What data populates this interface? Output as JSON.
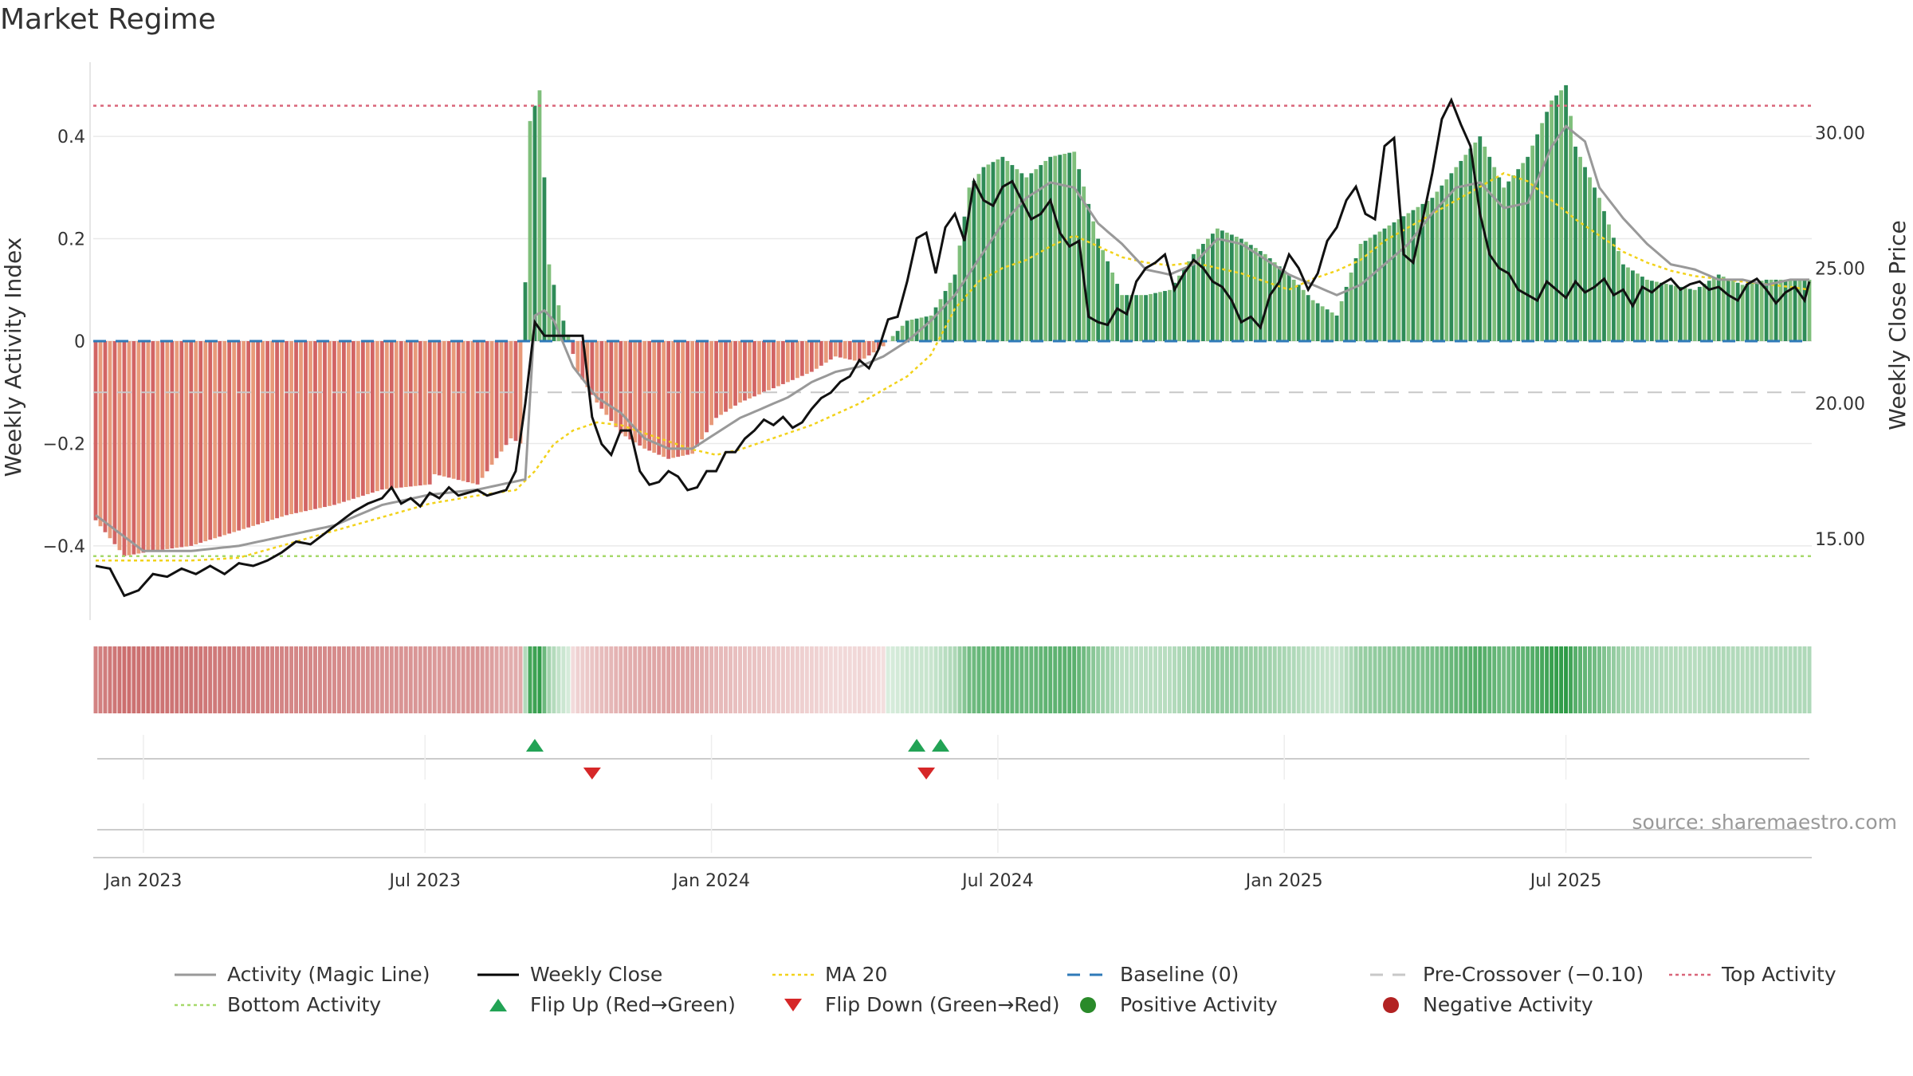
{
  "title": "Market Regime",
  "source_text": "source: sharemaestro.com",
  "legend": [
    {
      "label": "Activity (Magic Line)",
      "kind": "line",
      "color": "#999999"
    },
    {
      "label": "Weekly Close",
      "kind": "line",
      "color": "#000000"
    },
    {
      "label": "MA 20",
      "kind": "dotted",
      "color": "#f2d21b"
    },
    {
      "label": "Baseline (0)",
      "kind": "dashed",
      "color": "#2f7ab8"
    },
    {
      "label": "Pre-Crossover (−0.10)",
      "kind": "dashed",
      "color": "#c8c8c8"
    },
    {
      "label": "Top Activity",
      "kind": "dotted",
      "color": "#d9667a"
    },
    {
      "label": "Bottom Activity",
      "kind": "dotted",
      "color": "#a6d96a"
    },
    {
      "label": "Flip Up (Red→Green)",
      "kind": "tri-up",
      "color": "#22a355"
    },
    {
      "label": "Flip Down (Green→Red)",
      "kind": "tri-down",
      "color": "#d62728"
    },
    {
      "label": "Positive Activity",
      "kind": "dot",
      "color": "#2a8a2a"
    },
    {
      "label": "Negative Activity",
      "kind": "dot",
      "color": "#b22222"
    }
  ],
  "chart_data": {
    "type": "bar",
    "x_ticks": [
      "Jan 2023",
      "Jul 2023",
      "Jan 2024",
      "Jul 2024",
      "Jan 2025",
      "Jul 2025"
    ],
    "x_tick_weeks": [
      10,
      69,
      129,
      189,
      249,
      308
    ],
    "n_weeks": 360,
    "y_left": {
      "label": "Weekly Activity Index",
      "ticks": [
        "0.4",
        "0.2",
        "0",
        "−0.2",
        "−0.4"
      ],
      "tick_values": [
        0.4,
        0.2,
        0,
        -0.2,
        -0.4
      ],
      "range": [
        -0.545,
        0.545
      ]
    },
    "y_right": {
      "label": "Weekly Close Price",
      "ticks": [
        "30.00",
        "25.00",
        "20.00",
        "15.00"
      ],
      "tick_values": [
        30,
        25,
        20,
        15
      ],
      "range": [
        12.0,
        32.6
      ]
    },
    "reference_lines": {
      "top_activity": 0.46,
      "bottom_activity": -0.42,
      "pre_crossover": -0.1,
      "baseline": 0
    },
    "activity_keyframes": [
      [
        0,
        -0.35
      ],
      [
        6,
        -0.42
      ],
      [
        12,
        -0.41
      ],
      [
        20,
        -0.4
      ],
      [
        30,
        -0.37
      ],
      [
        40,
        -0.34
      ],
      [
        50,
        -0.32
      ],
      [
        60,
        -0.29
      ],
      [
        70,
        -0.28
      ],
      [
        71,
        -0.26
      ],
      [
        80,
        -0.28
      ],
      [
        87,
        -0.19
      ],
      [
        89,
        -0.2
      ],
      [
        91,
        0.43
      ],
      [
        93,
        0.49
      ],
      [
        95,
        0.15
      ],
      [
        97,
        0.07
      ],
      [
        99,
        0.01
      ],
      [
        101,
        -0.06
      ],
      [
        105,
        -0.12
      ],
      [
        110,
        -0.18
      ],
      [
        115,
        -0.21
      ],
      [
        120,
        -0.23
      ],
      [
        125,
        -0.22
      ],
      [
        130,
        -0.15
      ],
      [
        135,
        -0.12
      ],
      [
        140,
        -0.1
      ],
      [
        145,
        -0.08
      ],
      [
        150,
        -0.06
      ],
      [
        155,
        -0.03
      ],
      [
        160,
        -0.04
      ],
      [
        165,
        -0.01
      ],
      [
        170,
        0.04
      ],
      [
        175,
        0.05
      ],
      [
        180,
        0.13
      ],
      [
        183,
        0.3
      ],
      [
        186,
        0.34
      ],
      [
        190,
        0.36
      ],
      [
        195,
        0.32
      ],
      [
        200,
        0.36
      ],
      [
        205,
        0.37
      ],
      [
        210,
        0.2
      ],
      [
        215,
        0.09
      ],
      [
        220,
        0.09
      ],
      [
        225,
        0.1
      ],
      [
        230,
        0.17
      ],
      [
        235,
        0.22
      ],
      [
        240,
        0.2
      ],
      [
        245,
        0.17
      ],
      [
        250,
        0.13
      ],
      [
        255,
        0.08
      ],
      [
        260,
        0.05
      ],
      [
        265,
        0.19
      ],
      [
        270,
        0.22
      ],
      [
        275,
        0.25
      ],
      [
        280,
        0.28
      ],
      [
        285,
        0.34
      ],
      [
        290,
        0.4
      ],
      [
        295,
        0.3
      ],
      [
        300,
        0.36
      ],
      [
        305,
        0.47
      ],
      [
        308,
        0.5
      ],
      [
        310,
        0.38
      ],
      [
        315,
        0.28
      ],
      [
        320,
        0.15
      ],
      [
        325,
        0.12
      ],
      [
        330,
        0.11
      ],
      [
        335,
        0.1
      ],
      [
        340,
        0.13
      ],
      [
        345,
        0.11
      ],
      [
        350,
        0.12
      ],
      [
        355,
        0.12
      ],
      [
        359,
        0.12
      ]
    ],
    "magic_line_keyframes": [
      [
        0,
        -0.34
      ],
      [
        10,
        -0.41
      ],
      [
        20,
        -0.41
      ],
      [
        30,
        -0.4
      ],
      [
        40,
        -0.38
      ],
      [
        50,
        -0.36
      ],
      [
        60,
        -0.32
      ],
      [
        70,
        -0.3
      ],
      [
        80,
        -0.29
      ],
      [
        90,
        -0.27
      ],
      [
        92,
        0.05
      ],
      [
        94,
        0.06
      ],
      [
        96,
        0.04
      ],
      [
        100,
        -0.05
      ],
      [
        105,
        -0.11
      ],
      [
        110,
        -0.14
      ],
      [
        115,
        -0.19
      ],
      [
        120,
        -0.21
      ],
      [
        125,
        -0.21
      ],
      [
        130,
        -0.18
      ],
      [
        135,
        -0.15
      ],
      [
        140,
        -0.13
      ],
      [
        145,
        -0.11
      ],
      [
        150,
        -0.08
      ],
      [
        155,
        -0.06
      ],
      [
        160,
        -0.05
      ],
      [
        165,
        -0.03
      ],
      [
        170,
        0
      ],
      [
        175,
        0.04
      ],
      [
        180,
        0.09
      ],
      [
        185,
        0.16
      ],
      [
        190,
        0.23
      ],
      [
        195,
        0.28
      ],
      [
        200,
        0.31
      ],
      [
        205,
        0.3
      ],
      [
        210,
        0.23
      ],
      [
        215,
        0.19
      ],
      [
        220,
        0.14
      ],
      [
        225,
        0.13
      ],
      [
        230,
        0.15
      ],
      [
        235,
        0.2
      ],
      [
        240,
        0.19
      ],
      [
        245,
        0.16
      ],
      [
        250,
        0.13
      ],
      [
        255,
        0.11
      ],
      [
        260,
        0.09
      ],
      [
        265,
        0.11
      ],
      [
        270,
        0.15
      ],
      [
        275,
        0.19
      ],
      [
        280,
        0.25
      ],
      [
        285,
        0.3
      ],
      [
        290,
        0.31
      ],
      [
        295,
        0.26
      ],
      [
        300,
        0.27
      ],
      [
        305,
        0.38
      ],
      [
        308,
        0.42
      ],
      [
        312,
        0.39
      ],
      [
        315,
        0.3
      ],
      [
        320,
        0.24
      ],
      [
        325,
        0.19
      ],
      [
        330,
        0.15
      ],
      [
        335,
        0.14
      ],
      [
        340,
        0.12
      ],
      [
        345,
        0.12
      ],
      [
        350,
        0.11
      ],
      [
        355,
        0.12
      ],
      [
        359,
        0.12
      ]
    ],
    "close_keyframes": [
      [
        0,
        14.0
      ],
      [
        3,
        13.9
      ],
      [
        6,
        12.9
      ],
      [
        9,
        13.1
      ],
      [
        12,
        13.7
      ],
      [
        15,
        13.6
      ],
      [
        18,
        13.9
      ],
      [
        21,
        13.7
      ],
      [
        24,
        14.0
      ],
      [
        27,
        13.7
      ],
      [
        30,
        14.1
      ],
      [
        33,
        14.0
      ],
      [
        36,
        14.2
      ],
      [
        39,
        14.5
      ],
      [
        42,
        14.9
      ],
      [
        45,
        14.8
      ],
      [
        48,
        15.2
      ],
      [
        51,
        15.6
      ],
      [
        54,
        16.0
      ],
      [
        57,
        16.3
      ],
      [
        60,
        16.5
      ],
      [
        62,
        16.9
      ],
      [
        64,
        16.3
      ],
      [
        66,
        16.5
      ],
      [
        68,
        16.2
      ],
      [
        70,
        16.7
      ],
      [
        72,
        16.5
      ],
      [
        74,
        16.9
      ],
      [
        76,
        16.6
      ],
      [
        78,
        16.7
      ],
      [
        80,
        16.8
      ],
      [
        82,
        16.6
      ],
      [
        84,
        16.7
      ],
      [
        86,
        16.8
      ],
      [
        88,
        17.5
      ],
      [
        90,
        20.0
      ],
      [
        92,
        23.0
      ],
      [
        94,
        22.5
      ],
      [
        96,
        22.5
      ],
      [
        98,
        22.5
      ],
      [
        100,
        22.5
      ],
      [
        102,
        22.5
      ],
      [
        104,
        19.5
      ],
      [
        106,
        18.5
      ],
      [
        108,
        18.1
      ],
      [
        110,
        19.0
      ],
      [
        112,
        19.0
      ],
      [
        114,
        17.5
      ],
      [
        116,
        17.0
      ],
      [
        118,
        17.1
      ],
      [
        120,
        17.5
      ],
      [
        122,
        17.3
      ],
      [
        124,
        16.8
      ],
      [
        126,
        16.9
      ],
      [
        128,
        17.5
      ],
      [
        130,
        17.5
      ],
      [
        132,
        18.2
      ],
      [
        134,
        18.2
      ],
      [
        136,
        18.7
      ],
      [
        138,
        19.0
      ],
      [
        140,
        19.4
      ],
      [
        142,
        19.2
      ],
      [
        144,
        19.5
      ],
      [
        146,
        19.1
      ],
      [
        148,
        19.3
      ],
      [
        150,
        19.8
      ],
      [
        152,
        20.2
      ],
      [
        154,
        20.4
      ],
      [
        156,
        20.8
      ],
      [
        158,
        21.0
      ],
      [
        160,
        21.6
      ],
      [
        162,
        21.3
      ],
      [
        164,
        22.0
      ],
      [
        166,
        23.1
      ],
      [
        168,
        23.2
      ],
      [
        170,
        24.5
      ],
      [
        172,
        26.1
      ],
      [
        174,
        26.3
      ],
      [
        176,
        24.8
      ],
      [
        178,
        26.5
      ],
      [
        180,
        27.0
      ],
      [
        182,
        26.0
      ],
      [
        184,
        28.2
      ],
      [
        186,
        27.5
      ],
      [
        188,
        27.3
      ],
      [
        190,
        28.0
      ],
      [
        192,
        28.2
      ],
      [
        194,
        27.5
      ],
      [
        196,
        26.8
      ],
      [
        198,
        27.0
      ],
      [
        200,
        27.5
      ],
      [
        202,
        26.3
      ],
      [
        204,
        25.8
      ],
      [
        206,
        26.0
      ],
      [
        208,
        23.2
      ],
      [
        210,
        23.0
      ],
      [
        212,
        22.9
      ],
      [
        214,
        23.5
      ],
      [
        216,
        23.3
      ],
      [
        218,
        24.5
      ],
      [
        220,
        25.0
      ],
      [
        222,
        25.2
      ],
      [
        224,
        25.5
      ],
      [
        226,
        24.2
      ],
      [
        228,
        24.8
      ],
      [
        230,
        25.3
      ],
      [
        232,
        25.0
      ],
      [
        234,
        24.5
      ],
      [
        236,
        24.3
      ],
      [
        238,
        23.8
      ],
      [
        240,
        23.0
      ],
      [
        242,
        23.2
      ],
      [
        244,
        22.8
      ],
      [
        246,
        24.0
      ],
      [
        248,
        24.5
      ],
      [
        250,
        25.5
      ],
      [
        252,
        25.0
      ],
      [
        254,
        24.2
      ],
      [
        256,
        24.8
      ],
      [
        258,
        26.0
      ],
      [
        260,
        26.5
      ],
      [
        262,
        27.5
      ],
      [
        264,
        28.0
      ],
      [
        266,
        27.0
      ],
      [
        268,
        26.8
      ],
      [
        270,
        29.5
      ],
      [
        272,
        29.8
      ],
      [
        274,
        25.5
      ],
      [
        276,
        25.2
      ],
      [
        278,
        26.8
      ],
      [
        280,
        28.5
      ],
      [
        282,
        30.5
      ],
      [
        284,
        31.2
      ],
      [
        286,
        30.3
      ],
      [
        288,
        29.5
      ],
      [
        290,
        27.0
      ],
      [
        292,
        25.5
      ],
      [
        294,
        25.0
      ],
      [
        296,
        24.8
      ],
      [
        298,
        24.2
      ],
      [
        300,
        24.0
      ],
      [
        302,
        23.8
      ],
      [
        304,
        24.5
      ],
      [
        306,
        24.2
      ],
      [
        308,
        23.9
      ],
      [
        310,
        24.5
      ],
      [
        312,
        24.1
      ],
      [
        314,
        24.3
      ],
      [
        316,
        24.6
      ],
      [
        318,
        24.0
      ],
      [
        320,
        24.2
      ],
      [
        322,
        23.6
      ],
      [
        324,
        24.3
      ],
      [
        326,
        24.1
      ],
      [
        328,
        24.4
      ],
      [
        330,
        24.6
      ],
      [
        332,
        24.2
      ],
      [
        334,
        24.4
      ],
      [
        336,
        24.5
      ],
      [
        338,
        24.2
      ],
      [
        340,
        24.3
      ],
      [
        342,
        24.0
      ],
      [
        344,
        23.8
      ],
      [
        346,
        24.4
      ],
      [
        348,
        24.6
      ],
      [
        350,
        24.2
      ],
      [
        352,
        23.7
      ],
      [
        354,
        24.1
      ],
      [
        356,
        24.3
      ],
      [
        358,
        23.8
      ],
      [
        359,
        24.5
      ]
    ],
    "ma20_keyframes": [
      [
        0,
        14.2
      ],
      [
        10,
        14.2
      ],
      [
        20,
        14.2
      ],
      [
        30,
        14.3
      ],
      [
        40,
        14.8
      ],
      [
        50,
        15.3
      ],
      [
        60,
        15.8
      ],
      [
        70,
        16.3
      ],
      [
        80,
        16.6
      ],
      [
        88,
        16.8
      ],
      [
        92,
        17.5
      ],
      [
        96,
        18.5
      ],
      [
        100,
        19.0
      ],
      [
        105,
        19.3
      ],
      [
        110,
        19.2
      ],
      [
        115,
        18.9
      ],
      [
        120,
        18.6
      ],
      [
        125,
        18.3
      ],
      [
        130,
        18.1
      ],
      [
        135,
        18.3
      ],
      [
        140,
        18.6
      ],
      [
        145,
        18.9
      ],
      [
        150,
        19.2
      ],
      [
        155,
        19.6
      ],
      [
        160,
        20.0
      ],
      [
        165,
        20.5
      ],
      [
        170,
        21.0
      ],
      [
        175,
        21.8
      ],
      [
        180,
        23.5
      ],
      [
        185,
        24.5
      ],
      [
        190,
        25.0
      ],
      [
        195,
        25.3
      ],
      [
        200,
        25.8
      ],
      [
        205,
        26.2
      ],
      [
        210,
        25.8
      ],
      [
        215,
        25.4
      ],
      [
        220,
        25.2
      ],
      [
        225,
        25.1
      ],
      [
        230,
        25.2
      ],
      [
        235,
        25.0
      ],
      [
        240,
        24.8
      ],
      [
        245,
        24.5
      ],
      [
        250,
        24.2
      ],
      [
        255,
        24.6
      ],
      [
        260,
        24.9
      ],
      [
        265,
        25.3
      ],
      [
        270,
        26.0
      ],
      [
        275,
        26.5
      ],
      [
        280,
        27.0
      ],
      [
        285,
        27.5
      ],
      [
        290,
        28.0
      ],
      [
        295,
        28.5
      ],
      [
        300,
        28.2
      ],
      [
        305,
        27.5
      ],
      [
        310,
        26.8
      ],
      [
        315,
        26.2
      ],
      [
        320,
        25.6
      ],
      [
        325,
        25.2
      ],
      [
        330,
        24.9
      ],
      [
        335,
        24.7
      ],
      [
        340,
        24.6
      ],
      [
        345,
        24.5
      ],
      [
        350,
        24.4
      ],
      [
        355,
        24.3
      ],
      [
        359,
        24.2
      ]
    ],
    "flip_up_weeks": [
      92,
      172,
      177
    ],
    "flip_down_weeks": [
      104,
      174
    ]
  }
}
